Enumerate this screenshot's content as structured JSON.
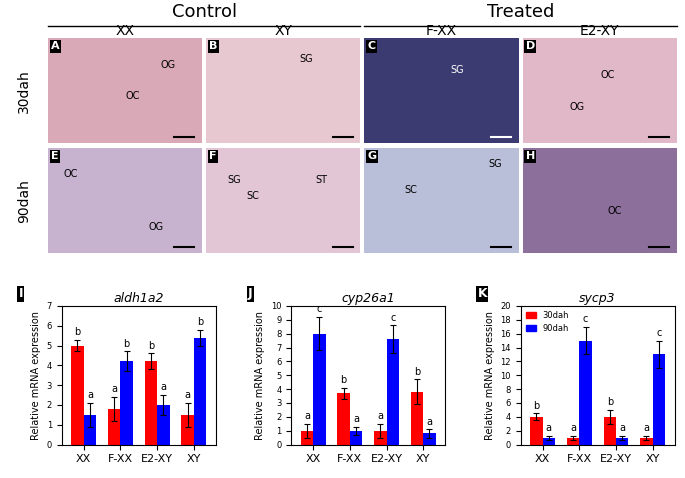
{
  "header": {
    "groups": [
      "Control",
      "Treated"
    ],
    "columns": [
      "XX",
      "XY",
      "F-XX",
      "E2-XY"
    ],
    "rows": [
      "30dah",
      "90dah"
    ]
  },
  "image_panels": [
    [
      {
        "letter": "A",
        "labels": [
          "OG",
          "OC"
        ]
      },
      {
        "letter": "B",
        "labels": [
          "SG"
        ]
      },
      {
        "letter": "C",
        "labels": [
          "SG"
        ]
      },
      {
        "letter": "D",
        "labels": [
          "OC",
          "OG"
        ]
      }
    ],
    [
      {
        "letter": "E",
        "labels": [
          "OC",
          "OG"
        ]
      },
      {
        "letter": "F",
        "labels": [
          "SG",
          "SC",
          "ST"
        ]
      },
      {
        "letter": "G",
        "labels": [
          "SC",
          "SG"
        ]
      },
      {
        "letter": "H",
        "labels": [
          "OC"
        ]
      }
    ]
  ],
  "chart_data": [
    {
      "type": "bar",
      "panel": "I",
      "title": "aldh1a2",
      "y_label": "Relative mRNA expression",
      "categories": [
        "XX",
        "F-XX",
        "E2-XY",
        "XY"
      ],
      "series": [
        {
          "name": "30dah",
          "color": "#ff0000",
          "values": [
            5.0,
            1.8,
            4.2,
            1.5
          ],
          "errors": [
            0.3,
            0.6,
            0.4,
            0.6
          ],
          "letters": [
            "b",
            "a",
            "b",
            "a"
          ]
        },
        {
          "name": "90dah",
          "color": "#0000ff",
          "values": [
            1.5,
            4.2,
            2.0,
            5.4
          ],
          "errors": [
            0.6,
            0.5,
            0.5,
            0.4
          ],
          "letters": [
            "a",
            "b",
            "a",
            "b"
          ]
        }
      ],
      "ylim": [
        0,
        7
      ],
      "yticks": [
        0,
        1,
        2,
        3,
        4,
        5,
        6,
        7
      ]
    },
    {
      "type": "bar",
      "panel": "J",
      "title": "cyp26a1",
      "y_label": "Relative mRNA expression",
      "categories": [
        "XX",
        "F-XX",
        "E2-XY",
        "XY"
      ],
      "series": [
        {
          "name": "30dah",
          "color": "#ff0000",
          "values": [
            1.0,
            3.7,
            1.0,
            3.8
          ],
          "errors": [
            0.5,
            0.4,
            0.5,
            0.9
          ],
          "letters": [
            "a",
            "b",
            "a",
            "b"
          ]
        },
        {
          "name": "90dah",
          "color": "#0000ff",
          "values": [
            8.0,
            1.0,
            7.6,
            0.8
          ],
          "errors": [
            1.2,
            0.3,
            1.0,
            0.3
          ],
          "letters": [
            "c",
            "a",
            "c",
            "a"
          ]
        }
      ],
      "ylim": [
        0,
        10
      ],
      "yticks": [
        0,
        1,
        2,
        3,
        4,
        5,
        6,
        7,
        8,
        9,
        10
      ]
    },
    {
      "type": "bar",
      "panel": "K",
      "title": "sycp3",
      "y_label": "Relative mRNA expression",
      "categories": [
        "XX",
        "F-XX",
        "E2-XY",
        "XY"
      ],
      "series": [
        {
          "name": "30dah",
          "color": "#ff0000",
          "values": [
            4.0,
            1.0,
            4.0,
            1.0
          ],
          "errors": [
            0.5,
            0.3,
            1.0,
            0.3
          ],
          "letters": [
            "b",
            "a",
            "b",
            "a"
          ]
        },
        {
          "name": "90dah",
          "color": "#0000ff",
          "values": [
            1.0,
            15.0,
            1.0,
            13.0
          ],
          "errors": [
            0.3,
            2.0,
            0.3,
            2.0
          ],
          "letters": [
            "a",
            "c",
            "a",
            "c"
          ]
        }
      ],
      "ylim": [
        0,
        20
      ],
      "yticks": [
        0,
        2,
        4,
        6,
        8,
        10,
        12,
        14,
        16,
        18,
        20
      ],
      "legend": "upper left"
    }
  ]
}
